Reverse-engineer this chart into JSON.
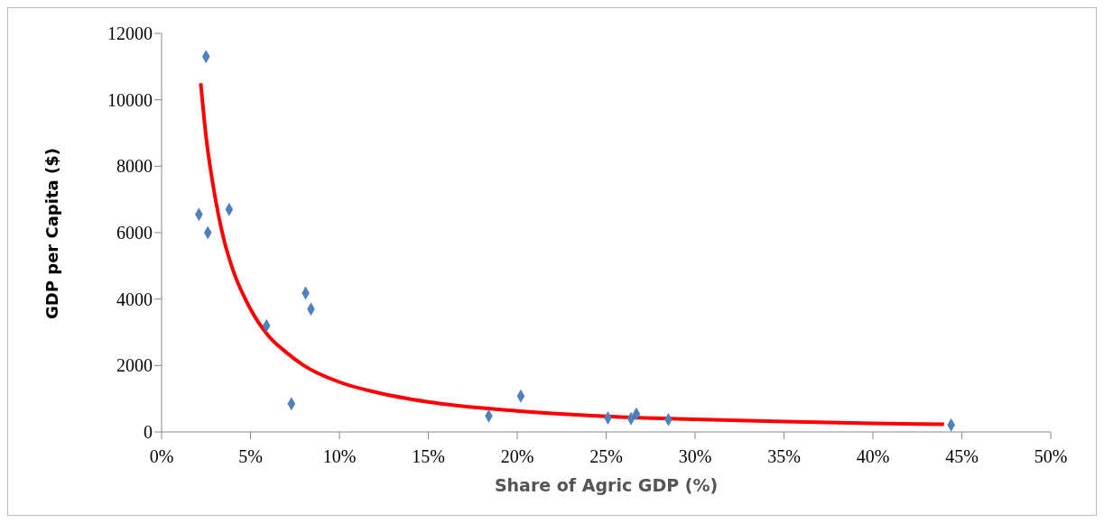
{
  "chart_data": {
    "type": "scatter",
    "xlabel": "Share of Agric GDP (%)",
    "ylabel": "GDP per Capita ($)",
    "xlim": [
      0,
      50
    ],
    "xticks": [
      {
        "value": 0,
        "label": "0%"
      },
      {
        "value": 5,
        "label": "5%"
      },
      {
        "value": 10,
        "label": "10%"
      },
      {
        "value": 15,
        "label": "15%"
      },
      {
        "value": 20,
        "label": "20%"
      },
      {
        "value": 25,
        "label": "25%"
      },
      {
        "value": 30,
        "label": "30%"
      },
      {
        "value": 35,
        "label": "35%"
      },
      {
        "value": 40,
        "label": "40%"
      },
      {
        "value": 45,
        "label": "45%"
      },
      {
        "value": 50,
        "label": "50%"
      }
    ],
    "ylim": [
      0,
      12000
    ],
    "yticks": [
      0,
      2000,
      4000,
      6000,
      8000,
      10000,
      12000
    ],
    "marker": "diamond",
    "series": [
      {
        "color": "#4f81bd",
        "x": [
          2.5,
          2.1,
          2.6,
          3.8,
          5.9,
          8.1,
          8.4,
          7.3,
          18.4,
          20.2,
          25.1,
          26.4,
          26.7,
          28.5,
          44.4
        ],
        "values": [
          11300,
          6550,
          6000,
          6700,
          3200,
          4180,
          3700,
          850,
          480,
          1080,
          420,
          400,
          540,
          370,
          210
        ]
      },
      {
        "type": "line",
        "color": "#ff0000",
        "marker": "none",
        "x": [
          2.2,
          2.5,
          3,
          3.5,
          4,
          5,
          6,
          7,
          8,
          10,
          12,
          15,
          20,
          25,
          30,
          35,
          40,
          44
        ],
        "values": [
          10500,
          8900,
          7100,
          5800,
          4900,
          3700,
          2900,
          2400,
          2000,
          1500,
          1200,
          900,
          630,
          470,
          380,
          310,
          260,
          230
        ]
      }
    ]
  }
}
